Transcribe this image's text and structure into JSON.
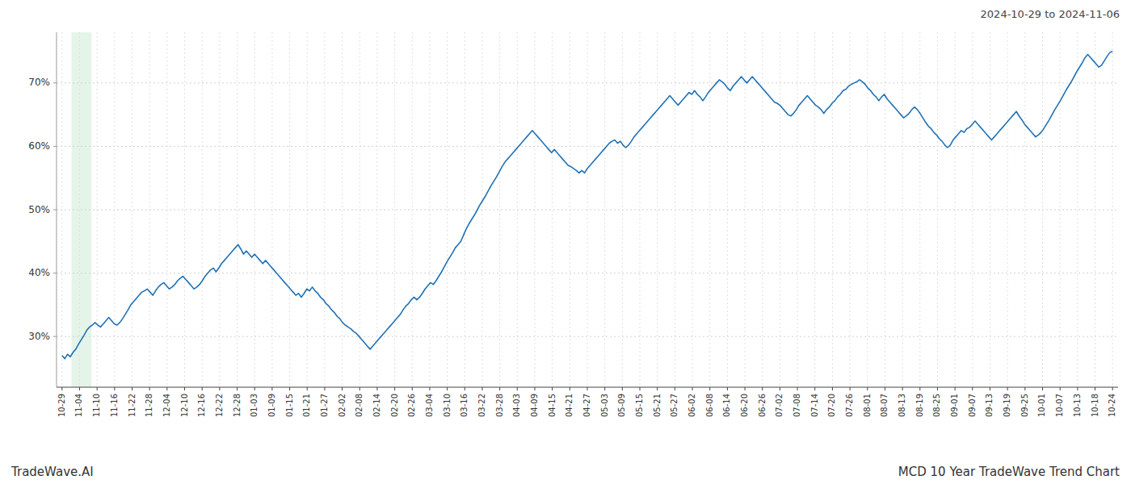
{
  "chart_data": {
    "type": "line",
    "subtitle": "2024-10-29 to 2024-11-06",
    "annotations": [
      "TradeWave.AI",
      "MCD 10 Year TradeWave Trend Chart"
    ],
    "color": "#2171b5",
    "grid": true,
    "shade": {
      "x": [
        3.447,
        10.724
      ],
      "color": "#d4edda"
    },
    "xlim": [
      -2,
      384
    ],
    "xticks": [
      {
        "value": 0,
        "label": "10-29"
      },
      {
        "value": 6.3667,
        "label": "11-04"
      },
      {
        "value": 12.7333,
        "label": "11-10"
      },
      {
        "value": 19.1,
        "label": "11-16"
      },
      {
        "value": 25.4667,
        "label": "11-22"
      },
      {
        "value": 31.8333,
        "label": "11-28"
      },
      {
        "value": 38.2,
        "label": "12-04"
      },
      {
        "value": 44.5667,
        "label": "12-10"
      },
      {
        "value": 50.9333,
        "label": "12-16"
      },
      {
        "value": 57.3,
        "label": "12-22"
      },
      {
        "value": 63.6667,
        "label": "12-28"
      },
      {
        "value": 70.0333,
        "label": "01-03"
      },
      {
        "value": 76.4,
        "label": "01-09"
      },
      {
        "value": 82.7667,
        "label": "01-15"
      },
      {
        "value": 89.1333,
        "label": "01-21"
      },
      {
        "value": 95.5,
        "label": "01-27"
      },
      {
        "value": 101.8667,
        "label": "02-02"
      },
      {
        "value": 108.2333,
        "label": "02-08"
      },
      {
        "value": 114.6,
        "label": "02-14"
      },
      {
        "value": 120.9667,
        "label": "02-20"
      },
      {
        "value": 127.3333,
        "label": "02-26"
      },
      {
        "value": 133.7,
        "label": "03-04"
      },
      {
        "value": 140.0667,
        "label": "03-10"
      },
      {
        "value": 146.4333,
        "label": "03-16"
      },
      {
        "value": 152.8,
        "label": "03-22"
      },
      {
        "value": 159.1667,
        "label": "03-28"
      },
      {
        "value": 165.5333,
        "label": "04-03"
      },
      {
        "value": 171.9,
        "label": "04-09"
      },
      {
        "value": 178.2667,
        "label": "04-15"
      },
      {
        "value": 184.6333,
        "label": "04-21"
      },
      {
        "value": 191,
        "label": "04-27"
      },
      {
        "value": 197.3667,
        "label": "05-03"
      },
      {
        "value": 203.7333,
        "label": "05-09"
      },
      {
        "value": 210.1,
        "label": "05-15"
      },
      {
        "value": 216.4667,
        "label": "05-21"
      },
      {
        "value": 222.8333,
        "label": "05-27"
      },
      {
        "value": 229.2,
        "label": "06-02"
      },
      {
        "value": 235.5667,
        "label": "06-08"
      },
      {
        "value": 241.9333,
        "label": "06-14"
      },
      {
        "value": 248.3,
        "label": "06-20"
      },
      {
        "value": 254.6667,
        "label": "06-26"
      },
      {
        "value": 261.0333,
        "label": "07-02"
      },
      {
        "value": 267.4,
        "label": "07-08"
      },
      {
        "value": 273.7667,
        "label": "07-14"
      },
      {
        "value": 280.1333,
        "label": "07-20"
      },
      {
        "value": 286.5,
        "label": "07-26"
      },
      {
        "value": 292.8667,
        "label": "08-01"
      },
      {
        "value": 299.2333,
        "label": "08-07"
      },
      {
        "value": 305.6,
        "label": "08-13"
      },
      {
        "value": 311.9667,
        "label": "08-19"
      },
      {
        "value": 318.3333,
        "label": "08-25"
      },
      {
        "value": 324.7,
        "label": "09-01"
      },
      {
        "value": 331.0667,
        "label": "09-07"
      },
      {
        "value": 337.4333,
        "label": "09-13"
      },
      {
        "value": 343.8,
        "label": "09-19"
      },
      {
        "value": 350.1667,
        "label": "09-25"
      },
      {
        "value": 356.5333,
        "label": "10-01"
      },
      {
        "value": 362.9,
        "label": "10-07"
      },
      {
        "value": 369.2667,
        "label": "10-13"
      },
      {
        "value": 375.6333,
        "label": "10-18"
      },
      {
        "value": 382,
        "label": "10-24"
      }
    ],
    "ylim": [
      22,
      78
    ],
    "yticks": [
      {
        "value": 30,
        "label": "30%"
      },
      {
        "value": 40,
        "label": "40%"
      },
      {
        "value": 50,
        "label": "50%"
      },
      {
        "value": 60,
        "label": "60%"
      },
      {
        "value": 70,
        "label": "70%"
      }
    ],
    "values": [
      27.0,
      26.5,
      27.2,
      26.8,
      27.5,
      28.0,
      28.8,
      29.5,
      30.2,
      31.0,
      31.5,
      31.8,
      32.2,
      31.8,
      31.5,
      32.0,
      32.5,
      33.0,
      32.5,
      32.0,
      31.8,
      32.2,
      32.8,
      33.5,
      34.2,
      35.0,
      35.5,
      36.0,
      36.5,
      37.0,
      37.2,
      37.5,
      37.0,
      36.5,
      37.2,
      37.8,
      38.2,
      38.5,
      38.0,
      37.5,
      37.8,
      38.2,
      38.8,
      39.2,
      39.5,
      39.0,
      38.5,
      38.0,
      37.5,
      37.8,
      38.2,
      38.8,
      39.5,
      40.0,
      40.5,
      40.8,
      40.2,
      40.8,
      41.5,
      42.0,
      42.5,
      43.0,
      43.5,
      44.0,
      44.5,
      43.8,
      43.0,
      43.5,
      43.0,
      42.5,
      43.0,
      42.5,
      42.0,
      41.5,
      42.0,
      41.5,
      41.0,
      40.5,
      40.0,
      39.5,
      39.0,
      38.5,
      38.0,
      37.5,
      37.0,
      36.5,
      36.8,
      36.2,
      36.8,
      37.5,
      37.2,
      37.8,
      37.2,
      36.8,
      36.2,
      35.8,
      35.2,
      34.8,
      34.2,
      33.8,
      33.2,
      32.8,
      32.2,
      31.8,
      31.5,
      31.2,
      30.8,
      30.5,
      30.0,
      29.5,
      29.0,
      28.5,
      28.0,
      28.5,
      29.0,
      29.5,
      30.0,
      30.5,
      31.0,
      31.5,
      32.0,
      32.5,
      33.0,
      33.5,
      34.2,
      34.8,
      35.2,
      35.8,
      36.2,
      35.8,
      36.2,
      36.8,
      37.5,
      38.0,
      38.5,
      38.2,
      38.8,
      39.5,
      40.2,
      41.0,
      41.8,
      42.5,
      43.2,
      44.0,
      44.5,
      45.0,
      46.0,
      47.0,
      47.8,
      48.5,
      49.2,
      50.0,
      50.8,
      51.5,
      52.2,
      53.0,
      53.8,
      54.5,
      55.2,
      56.0,
      56.8,
      57.5,
      58.0,
      58.5,
      59.0,
      59.5,
      60.0,
      60.5,
      61.0,
      61.5,
      62.0,
      62.5,
      62.0,
      61.5,
      61.0,
      60.5,
      60.0,
      59.5,
      59.0,
      59.5,
      59.0,
      58.5,
      58.0,
      57.5,
      57.0,
      56.8,
      56.5,
      56.2,
      55.8,
      56.2,
      55.8,
      56.5,
      57.0,
      57.5,
      58.0,
      58.5,
      59.0,
      59.5,
      60.0,
      60.5,
      60.8,
      61.0,
      60.5,
      60.8,
      60.2,
      59.8,
      60.2,
      60.8,
      61.5,
      62.0,
      62.5,
      63.0,
      63.5,
      64.0,
      64.5,
      65.0,
      65.5,
      66.0,
      66.5,
      67.0,
      67.5,
      68.0,
      67.5,
      67.0,
      66.5,
      67.0,
      67.5,
      68.0,
      68.5,
      68.2,
      68.8,
      68.2,
      67.8,
      67.2,
      67.8,
      68.5,
      69.0,
      69.5,
      70.0,
      70.5,
      70.2,
      69.8,
      69.2,
      68.8,
      69.5,
      70.0,
      70.5,
      71.0,
      70.5,
      70.0,
      70.5,
      71.0,
      70.5,
      70.0,
      69.5,
      69.0,
      68.5,
      68.0,
      67.5,
      67.0,
      66.8,
      66.5,
      66.0,
      65.5,
      65.0,
      64.8,
      65.2,
      65.8,
      66.5,
      67.0,
      67.5,
      68.0,
      67.5,
      67.0,
      66.5,
      66.2,
      65.8,
      65.2,
      65.8,
      66.2,
      66.8,
      67.2,
      67.8,
      68.2,
      68.8,
      69.0,
      69.5,
      69.8,
      70.0,
      70.2,
      70.5,
      70.2,
      69.8,
      69.2,
      68.8,
      68.2,
      67.8,
      67.2,
      67.8,
      68.2,
      67.5,
      67.0,
      66.5,
      66.0,
      65.5,
      65.0,
      64.5,
      64.8,
      65.2,
      65.8,
      66.2,
      65.8,
      65.2,
      64.5,
      63.8,
      63.2,
      62.8,
      62.2,
      61.8,
      61.2,
      60.8,
      60.2,
      59.8,
      60.2,
      61.0,
      61.5,
      62.0,
      62.5,
      62.2,
      62.8,
      63.0,
      63.5,
      64.0,
      63.5,
      63.0,
      62.5,
      62.0,
      61.5,
      61.0,
      61.5,
      62.0,
      62.5,
      63.0,
      63.5,
      64.0,
      64.5,
      65.0,
      65.5,
      64.8,
      64.2,
      63.5,
      63.0,
      62.5,
      62.0,
      61.5,
      61.8,
      62.2,
      62.8,
      63.5,
      64.2,
      65.0,
      65.8,
      66.5,
      67.2,
      68.0,
      68.8,
      69.5,
      70.2,
      71.0,
      71.8,
      72.5,
      73.2,
      74.0,
      74.5,
      74.0,
      73.5,
      73.0,
      72.5,
      72.8,
      73.5,
      74.2,
      74.8,
      75.0
    ]
  }
}
